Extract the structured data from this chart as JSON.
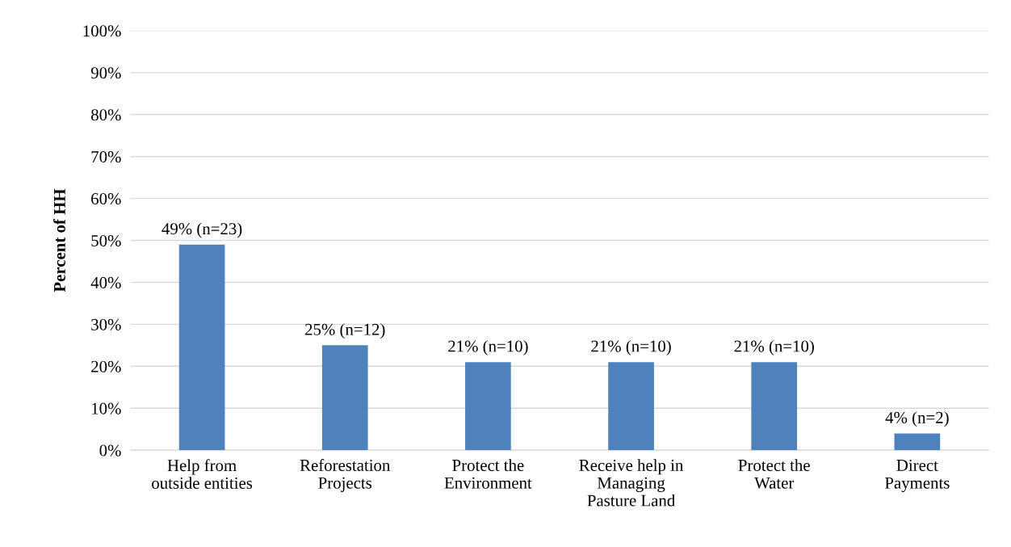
{
  "chart_data": {
    "type": "bar",
    "ylabel": "Percent of HH",
    "categories": [
      "Help from\noutside entities",
      "Reforestation\nProjects",
      "Protect the\nEnvironment",
      "Receive help in\nManaging\nPasture Land",
      "Protect the\nWater",
      "Direct\nPayments"
    ],
    "values": [
      49,
      25,
      21,
      21,
      21,
      4
    ],
    "value_labels": [
      "49% (n=23)",
      "25% (n=12)",
      "21% (n=10)",
      "21% (n=10)",
      "21% (n=10)",
      "4% (n=2)"
    ],
    "color": "#4f81bd",
    "ylim": [
      0,
      100
    ],
    "yticks": [
      {
        "value": 0,
        "label": "0%"
      },
      {
        "value": 10,
        "label": "10%"
      },
      {
        "value": 20,
        "label": "20%"
      },
      {
        "value": 30,
        "label": "30%"
      },
      {
        "value": 40,
        "label": "40%"
      },
      {
        "value": 50,
        "label": "50%"
      },
      {
        "value": 60,
        "label": "60%"
      },
      {
        "value": 70,
        "label": "70%"
      },
      {
        "value": 80,
        "label": "80%"
      },
      {
        "value": 90,
        "label": "90%"
      },
      {
        "value": 100,
        "label": "100%"
      }
    ],
    "grid": "y"
  }
}
